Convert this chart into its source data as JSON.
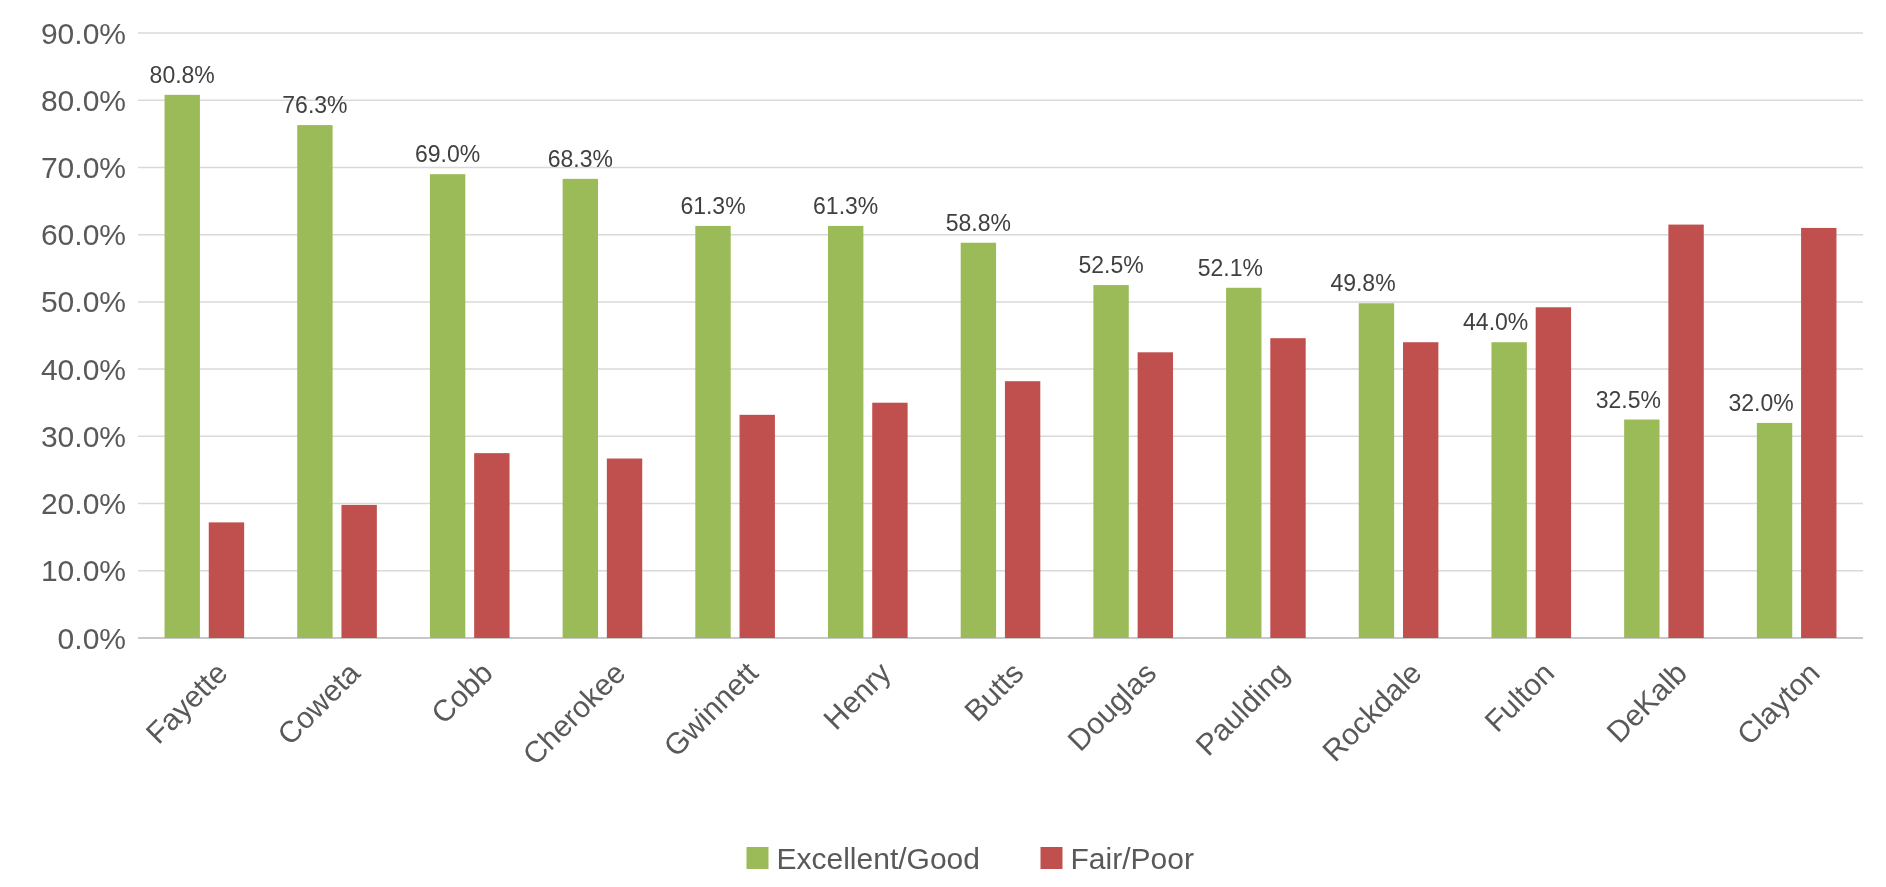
{
  "chart_data": {
    "type": "bar",
    "categories": [
      "Fayette",
      "Coweta",
      "Cobb",
      "Cherokee",
      "Gwinnett",
      "Henry",
      "Butts",
      "Douglas",
      "Paulding",
      "Rockdale",
      "Fulton",
      "DeKalb",
      "Clayton"
    ],
    "series": [
      {
        "name": "Excellent/Good",
        "color": "#9bbb59",
        "values": [
          80.8,
          76.3,
          69.0,
          68.3,
          61.3,
          61.3,
          58.8,
          52.5,
          52.1,
          49.8,
          44.0,
          32.5,
          32.0
        ],
        "value_labels": [
          "80.8%",
          "76.3%",
          "69.0%",
          "68.3%",
          "61.3%",
          "61.3%",
          "58.8%",
          "52.5%",
          "52.1%",
          "49.8%",
          "44.0%",
          "32.5%",
          "32.0%"
        ]
      },
      {
        "name": "Fair/Poor",
        "color": "#c0504d",
        "values": [
          17.2,
          19.8,
          27.5,
          26.7,
          33.2,
          35.0,
          38.2,
          42.5,
          44.6,
          44.0,
          49.2,
          61.5,
          61.0
        ]
      }
    ],
    "ylim": [
      0,
      90
    ],
    "yticks": [
      {
        "value": 0,
        "label": "0.0%"
      },
      {
        "value": 10,
        "label": "10.0%"
      },
      {
        "value": 20,
        "label": "20.0%"
      },
      {
        "value": 30,
        "label": "30.0%"
      },
      {
        "value": 40,
        "label": "40.0%"
      },
      {
        "value": 50,
        "label": "50.0%"
      },
      {
        "value": 60,
        "label": "60.0%"
      },
      {
        "value": 70,
        "label": "70.0%"
      },
      {
        "value": 80,
        "label": "80.0%"
      },
      {
        "value": 90,
        "label": "90.0%"
      }
    ],
    "grid": "y",
    "legend": "bottom"
  }
}
